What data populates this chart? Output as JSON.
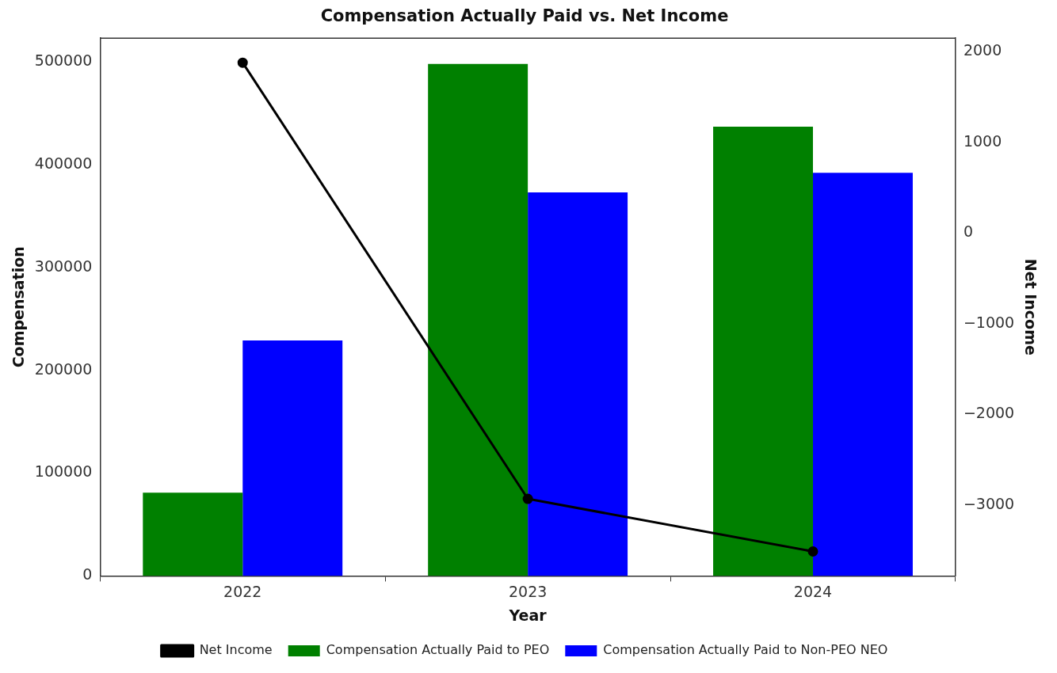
{
  "chart_data": {
    "type": "bar",
    "title": "Compensation Actually Paid vs. Net Income",
    "xlabel": "Year",
    "ylabel": "Compensation",
    "y2label": "Net Income",
    "categories": [
      "2022",
      "2023",
      "2024"
    ],
    "series": [
      {
        "name": "Compensation Actually Paid to PEO",
        "color": "#008000",
        "values": [
          81000,
          498000,
          437000
        ]
      },
      {
        "name": "Compensation Actually Paid to Non-PEO NEO",
        "color": "#0000ff",
        "values": [
          229000,
          373000,
          392000
        ]
      },
      {
        "name": "Net Income",
        "color": "#000000",
        "type": "line",
        "axis": "y2",
        "values": [
          1880,
          -2930,
          -3510
        ]
      }
    ],
    "ylim": [
      0,
      523000
    ],
    "yticks": [
      0,
      100000,
      200000,
      300000,
      400000,
      500000
    ],
    "y2lim": [
      -3780,
      2150
    ],
    "y2ticks": [
      {
        "value": -3000,
        "label": "−3000"
      },
      {
        "value": -2000,
        "label": "−2000"
      },
      {
        "value": -1000,
        "label": "−1000"
      },
      0,
      1000,
      2000
    ],
    "grid": false,
    "legend": "bottom",
    "marker": "circle",
    "line_style": "solid"
  }
}
